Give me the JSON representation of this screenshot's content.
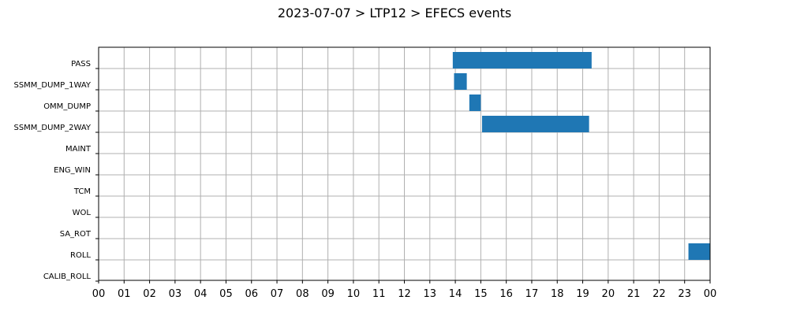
{
  "chart_data": {
    "type": "gantt",
    "title": "2023-07-07 > LTP12 > EFECS events",
    "xlabel": "",
    "ylabel": "",
    "x_unit": "hour",
    "xlim": [
      0,
      24
    ],
    "x_ticks": [
      "00",
      "01",
      "02",
      "03",
      "04",
      "05",
      "06",
      "07",
      "08",
      "09",
      "10",
      "11",
      "12",
      "13",
      "14",
      "15",
      "16",
      "17",
      "18",
      "19",
      "20",
      "21",
      "22",
      "23",
      "00"
    ],
    "grid": true,
    "bar_color": "#1f77b4",
    "categories": [
      "PASS",
      "SSMM_DUMP_1WAY",
      "OMM_DUMP",
      "SSMM_DUMP_2WAY",
      "MAINT",
      "ENG_WIN",
      "TCM",
      "WOL",
      "SA_ROT",
      "ROLL",
      "CALIB_ROLL"
    ],
    "events": [
      {
        "category": "PASS",
        "start": 13.9,
        "end": 19.35
      },
      {
        "category": "SSMM_DUMP_1WAY",
        "start": 13.95,
        "end": 14.45
      },
      {
        "category": "OMM_DUMP",
        "start": 14.55,
        "end": 15.0
      },
      {
        "category": "SSMM_DUMP_2WAY",
        "start": 15.05,
        "end": 19.25
      },
      {
        "category": "ROLL",
        "start": 23.15,
        "end": 24.0
      }
    ]
  }
}
